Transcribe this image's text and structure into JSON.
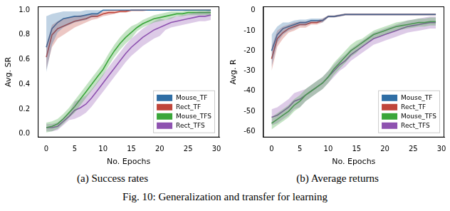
{
  "chart_data": [
    {
      "type": "line",
      "caption": "(a) Success rates",
      "xlabel": "No. Epochs",
      "ylabel": "Avg. SR",
      "x": [
        0,
        1,
        2,
        3,
        4,
        5,
        6,
        7,
        8,
        9,
        10,
        11,
        12,
        13,
        14,
        15,
        16,
        17,
        18,
        19,
        20,
        21,
        22,
        23,
        24,
        25,
        26,
        27,
        28,
        29
      ],
      "xlim": [
        -1.5,
        30.5
      ],
      "xticks": [
        0,
        5,
        10,
        15,
        20,
        25,
        30
      ],
      "ylim": [
        -0.03,
        1.03
      ],
      "yticks": [
        {
          "value": 0,
          "label": "0.0"
        },
        {
          "value": 0.2,
          "label": "0.2"
        },
        {
          "value": 0.4,
          "label": "0.4"
        },
        {
          "value": 0.6,
          "label": "0.6"
        },
        {
          "value": 0.8,
          "label": "0.8"
        },
        {
          "value": 1,
          "label": "1.0"
        }
      ],
      "grid": false,
      "legend": "lower right",
      "series": [
        {
          "name": "Mouse_TF",
          "color": "#2f6ea5",
          "values": [
            0.7,
            0.85,
            0.9,
            0.93,
            0.94,
            0.95,
            0.95,
            0.96,
            0.97,
            0.97,
            1.0,
            1.0,
            1.0,
            1.0,
            1.0,
            1.0,
            1.0,
            1.0,
            1.0,
            1.0,
            1.0,
            1.0,
            1.0,
            1.0,
            1.0,
            1.0,
            1.0,
            1.0,
            1.0,
            1.0
          ],
          "lower": [
            0.5,
            0.72,
            0.82,
            0.86,
            0.88,
            0.9,
            0.91,
            0.92,
            0.94,
            0.95,
            0.99,
            1.0,
            1.0,
            1.0,
            1.0,
            1.0,
            1.0,
            1.0,
            1.0,
            1.0,
            1.0,
            1.0,
            1.0,
            1.0,
            1.0,
            1.0,
            1.0,
            1.0,
            1.0,
            1.0
          ],
          "upper": [
            0.95,
            0.97,
            0.98,
            0.99,
            0.99,
            0.99,
            0.99,
            1.0,
            1.0,
            1.0,
            1.0,
            1.0,
            1.0,
            1.0,
            1.0,
            1.0,
            1.0,
            1.0,
            1.0,
            1.0,
            1.0,
            1.0,
            1.0,
            1.0,
            1.0,
            1.0,
            1.0,
            1.0,
            1.0,
            1.0
          ]
        },
        {
          "name": "Rect_TF",
          "color": "#c0453a",
          "values": [
            0.62,
            0.8,
            0.85,
            0.87,
            0.89,
            0.91,
            0.92,
            0.93,
            0.95,
            0.95,
            0.97,
            0.98,
            0.98,
            0.99,
            0.99,
            1.0,
            1.0,
            1.0,
            1.0,
            1.0,
            1.0,
            1.0,
            1.0,
            1.0,
            1.0,
            1.0,
            1.0,
            1.0,
            1.0,
            1.0
          ],
          "lower": [
            0.52,
            0.7,
            0.77,
            0.8,
            0.83,
            0.86,
            0.88,
            0.9,
            0.92,
            0.93,
            0.95,
            0.96,
            0.97,
            0.98,
            0.98,
            0.99,
            0.99,
            0.99,
            1.0,
            1.0,
            1.0,
            1.0,
            1.0,
            1.0,
            1.0,
            1.0,
            1.0,
            1.0,
            1.0,
            1.0
          ],
          "upper": [
            0.72,
            0.88,
            0.91,
            0.93,
            0.94,
            0.95,
            0.96,
            0.96,
            0.97,
            0.97,
            0.99,
            1.0,
            1.0,
            1.0,
            1.0,
            1.0,
            1.0,
            1.0,
            1.0,
            1.0,
            1.0,
            1.0,
            1.0,
            1.0,
            1.0,
            1.0,
            1.0,
            1.0,
            1.0,
            1.0
          ]
        },
        {
          "name": "Mouse_TFS",
          "color": "#3aa63a",
          "values": [
            0.05,
            0.06,
            0.08,
            0.12,
            0.17,
            0.22,
            0.28,
            0.34,
            0.4,
            0.46,
            0.52,
            0.6,
            0.67,
            0.73,
            0.78,
            0.82,
            0.86,
            0.89,
            0.91,
            0.93,
            0.94,
            0.95,
            0.96,
            0.97,
            0.97,
            0.98,
            0.98,
            0.98,
            0.98,
            0.98
          ],
          "lower": [
            0.01,
            0.02,
            0.04,
            0.08,
            0.13,
            0.17,
            0.23,
            0.29,
            0.35,
            0.41,
            0.47,
            0.55,
            0.62,
            0.68,
            0.73,
            0.77,
            0.83,
            0.86,
            0.88,
            0.9,
            0.91,
            0.92,
            0.93,
            0.95,
            0.95,
            0.96,
            0.96,
            0.96,
            0.96,
            0.96
          ],
          "upper": [
            0.09,
            0.1,
            0.12,
            0.16,
            0.21,
            0.27,
            0.33,
            0.39,
            0.45,
            0.51,
            0.57,
            0.65,
            0.72,
            0.78,
            0.83,
            0.87,
            0.89,
            0.92,
            0.94,
            0.96,
            0.97,
            0.98,
            0.99,
            0.99,
            0.99,
            1.0,
            1.0,
            1.0,
            1.0,
            1.0
          ]
        },
        {
          "name": "Rect_TFS",
          "color": "#8e52b0",
          "values": [
            0.05,
            0.05,
            0.06,
            0.1,
            0.14,
            0.19,
            0.21,
            0.24,
            0.29,
            0.35,
            0.41,
            0.47,
            0.53,
            0.59,
            0.65,
            0.7,
            0.74,
            0.78,
            0.81,
            0.84,
            0.86,
            0.88,
            0.9,
            0.91,
            0.92,
            0.93,
            0.94,
            0.95,
            0.95,
            0.96
          ],
          "lower": [
            0.02,
            0.02,
            0.03,
            0.07,
            0.11,
            0.12,
            0.14,
            0.17,
            0.22,
            0.28,
            0.34,
            0.4,
            0.46,
            0.52,
            0.58,
            0.63,
            0.67,
            0.71,
            0.74,
            0.77,
            0.79,
            0.84,
            0.86,
            0.87,
            0.88,
            0.89,
            0.9,
            0.91,
            0.91,
            0.92
          ],
          "upper": [
            0.08,
            0.08,
            0.09,
            0.13,
            0.17,
            0.26,
            0.28,
            0.31,
            0.36,
            0.42,
            0.48,
            0.54,
            0.6,
            0.66,
            0.72,
            0.77,
            0.81,
            0.85,
            0.88,
            0.91,
            0.93,
            0.92,
            0.94,
            0.95,
            0.96,
            0.97,
            0.98,
            0.99,
            0.99,
            1.0
          ]
        }
      ]
    },
    {
      "type": "line",
      "caption": "(b) Average returns",
      "xlabel": "No. Epochs",
      "ylabel": "Avg. R",
      "x": [
        0,
        1,
        2,
        3,
        4,
        5,
        6,
        7,
        8,
        9,
        10,
        11,
        12,
        13,
        14,
        15,
        16,
        17,
        18,
        19,
        20,
        21,
        22,
        23,
        24,
        25,
        26,
        27,
        28,
        29
      ],
      "xlim": [
        -1.5,
        30.5
      ],
      "xticks": [
        0,
        5,
        10,
        15,
        20,
        25,
        30
      ],
      "ylim": [
        -63,
        2
      ],
      "yticks": [
        -60,
        -50,
        -40,
        -30,
        -20,
        -10,
        0
      ],
      "grid": false,
      "legend": "lower right",
      "series": [
        {
          "name": "Mouse_TF",
          "color": "#2f6ea5",
          "values": [
            -20,
            -12,
            -9,
            -8,
            -7,
            -6,
            -6,
            -5,
            -5,
            -5,
            -3,
            -3,
            -2.5,
            -2,
            -2,
            -2,
            -2,
            -2,
            -2,
            -2,
            -2,
            -2,
            -2,
            -2,
            -2,
            -2,
            -2,
            -2,
            -2,
            -2
          ],
          "lower": [
            -28,
            -16,
            -12,
            -10,
            -9,
            -7.5,
            -7.5,
            -6,
            -6,
            -6,
            -3.5,
            -3.5,
            -3,
            -2.5,
            -2.5,
            -2.5,
            -2.5,
            -2.5,
            -2.5,
            -2.5,
            -2.5,
            -2.5,
            -2.5,
            -2.5,
            -2.5,
            -2.5,
            -2.5,
            -2.5,
            -2.5,
            -2.5
          ],
          "upper": [
            -12,
            -8,
            -6,
            -6,
            -5,
            -4.5,
            -4.5,
            -4,
            -4,
            -4,
            -2.5,
            -2.5,
            -2,
            -1.5,
            -1.5,
            -1.5,
            -1.5,
            -1.5,
            -1.5,
            -1.5,
            -1.5,
            -1.5,
            -1.5,
            -1.5,
            -1.5,
            -1.5,
            -1.5,
            -1.5,
            -1.5,
            -1.5
          ]
        },
        {
          "name": "Rect_TF",
          "color": "#c0453a",
          "values": [
            -24,
            -14,
            -11,
            -9,
            -8,
            -7,
            -7,
            -6,
            -6,
            -5,
            -3,
            -3,
            -2.5,
            -2,
            -2,
            -2,
            -2,
            -2,
            -2,
            -2,
            -2,
            -2,
            -2,
            -2,
            -2,
            -2,
            -2,
            -2,
            -2,
            -2
          ],
          "lower": [
            -30,
            -18,
            -14,
            -11,
            -10,
            -8.5,
            -8.5,
            -7,
            -7,
            -6,
            -3.5,
            -3.5,
            -3,
            -2.5,
            -2.5,
            -2.5,
            -2.5,
            -2.5,
            -2.5,
            -2.5,
            -2.5,
            -2.5,
            -2.5,
            -2.5,
            -2.5,
            -2.5,
            -2.5,
            -2.5,
            -2.5,
            -2.5
          ],
          "upper": [
            -18,
            -10,
            -8,
            -7,
            -6,
            -5.5,
            -5.5,
            -5,
            -5,
            -4,
            -2.5,
            -2.5,
            -2,
            -1.5,
            -1.5,
            -1.5,
            -1.5,
            -1.5,
            -1.5,
            -1.5,
            -1.5,
            -1.5,
            -1.5,
            -1.5,
            -1.5,
            -1.5,
            -1.5,
            -1.5,
            -1.5,
            -1.5
          ]
        },
        {
          "name": "Mouse_TFS",
          "color": "#3aa63a",
          "values": [
            -56,
            -54,
            -52,
            -50,
            -47,
            -45,
            -42,
            -40,
            -38,
            -36,
            -33,
            -29,
            -26,
            -23,
            -20,
            -18,
            -16,
            -14,
            -12,
            -11,
            -10,
            -9,
            -8,
            -7.5,
            -7,
            -6.5,
            -6,
            -6,
            -5.5,
            -5.5
          ],
          "lower": [
            -59,
            -57,
            -55,
            -53,
            -50,
            -48,
            -45,
            -43,
            -41,
            -39,
            -36,
            -32,
            -29,
            -26,
            -23,
            -21,
            -18,
            -16,
            -14,
            -13,
            -12,
            -11,
            -10,
            -9.5,
            -9,
            -8.5,
            -8,
            -8,
            -7.5,
            -7.5
          ],
          "upper": [
            -53,
            -51,
            -49,
            -47,
            -44,
            -42,
            -39,
            -37,
            -35,
            -33,
            -30,
            -26,
            -23,
            -20,
            -17,
            -15,
            -14,
            -12,
            -10,
            -9,
            -8,
            -7,
            -6,
            -5.5,
            -5,
            -4.5,
            -4,
            -4,
            -3.5,
            -3.5
          ]
        },
        {
          "name": "Rect_TFS",
          "color": "#8e52b0",
          "values": [
            -53,
            -52,
            -50,
            -48,
            -45,
            -44,
            -42,
            -40,
            -38,
            -36,
            -33,
            -30,
            -27,
            -25,
            -22,
            -20,
            -18,
            -16,
            -14,
            -13,
            -12,
            -11,
            -10,
            -9,
            -8,
            -7.5,
            -7,
            -6.5,
            -6,
            -6
          ],
          "lower": [
            -57,
            -56,
            -54,
            -52,
            -49,
            -48,
            -45,
            -43,
            -41,
            -39,
            -36,
            -33,
            -30,
            -28,
            -25,
            -23,
            -21,
            -19,
            -17,
            -16,
            -15,
            -14,
            -13,
            -12,
            -11,
            -10.5,
            -10,
            -9.5,
            -9,
            -9
          ],
          "upper": [
            -49,
            -48,
            -46,
            -44,
            -41,
            -40,
            -39,
            -37,
            -35,
            -33,
            -30,
            -27,
            -24,
            -22,
            -19,
            -17,
            -15,
            -13,
            -11,
            -10,
            -9,
            -8,
            -7,
            -6,
            -5,
            -4.5,
            -4,
            -3.5,
            -3,
            -3
          ]
        }
      ]
    }
  ],
  "figure_caption": "Fig. 10: Generalization and transfer for learning"
}
